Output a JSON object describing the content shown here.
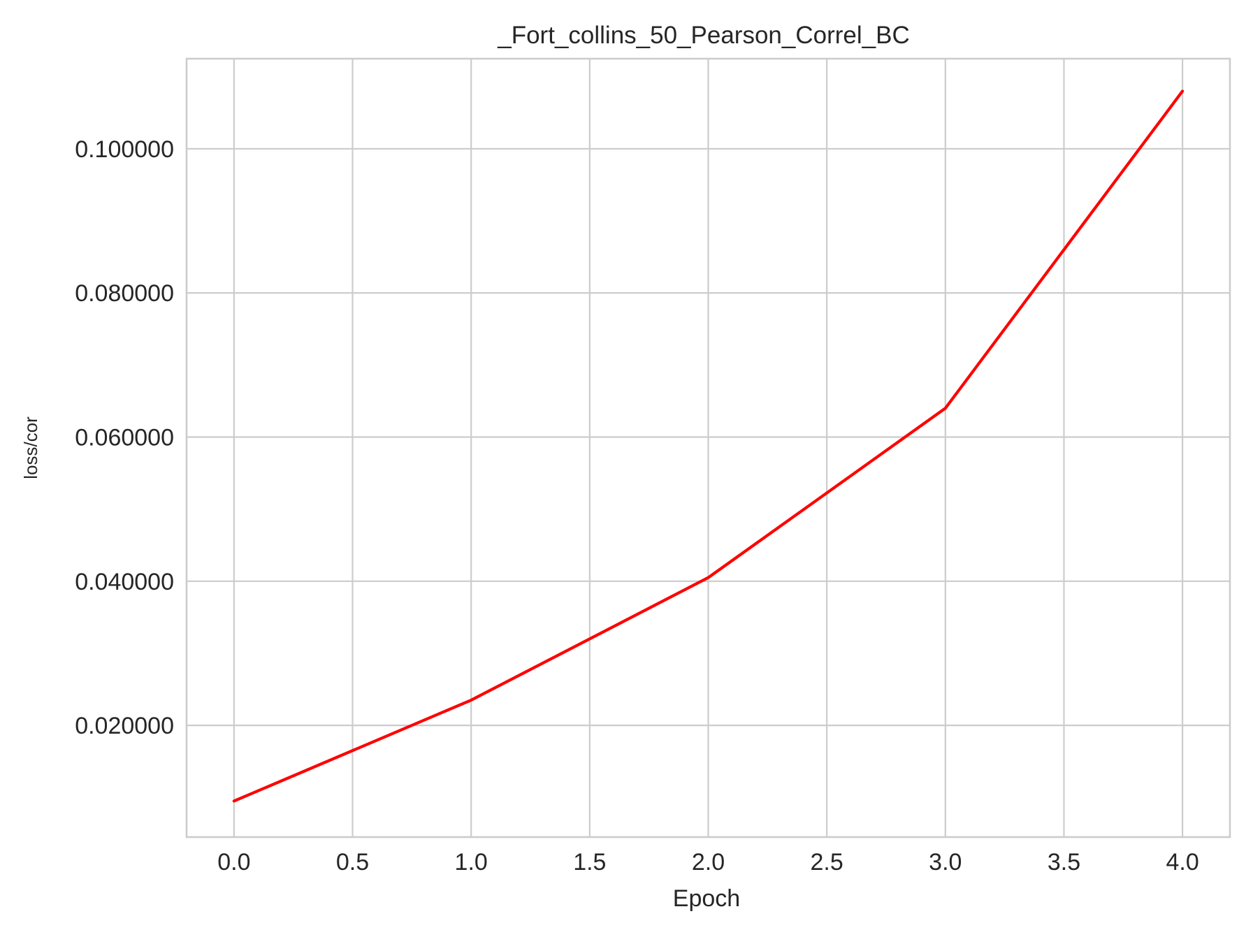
{
  "chart_data": {
    "type": "line",
    "title": "_Fort_collins_50_Pearson_Correl_BC",
    "xlabel": "Epoch",
    "ylabel": "loss/cor",
    "x": [
      0.0,
      1.0,
      2.0,
      3.0,
      4.0
    ],
    "series": [
      {
        "color": "#ff0000",
        "values": [
          0.0095,
          0.0235,
          0.0405,
          0.064,
          0.108
        ]
      }
    ],
    "xlim": [
      -0.2,
      4.2
    ],
    "ylim": [
      0.0045,
      0.1125
    ],
    "xticks": [
      0.0,
      0.5,
      1.0,
      1.5,
      2.0,
      2.5,
      3.0,
      3.5,
      4.0
    ],
    "xtick_labels": [
      "0.0",
      "0.5",
      "1.0",
      "1.5",
      "2.0",
      "2.5",
      "3.0",
      "3.5",
      "4.0"
    ],
    "yticks": [
      0.02,
      0.04,
      0.06,
      0.08,
      0.1
    ],
    "ytick_labels": [
      "0.020000",
      "0.040000",
      "0.060000",
      "0.080000",
      "0.100000"
    ],
    "grid": true,
    "legend": "none"
  }
}
